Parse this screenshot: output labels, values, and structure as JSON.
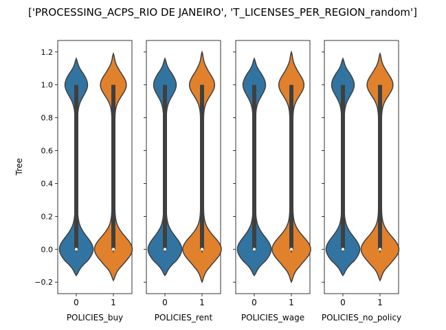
{
  "figure_title": "['PROCESSING_ACPS_RIO DE JANEIRO', 'T_LICENSES_PER_REGION_random']",
  "chart_data": {
    "type": "violin",
    "ylabel": "Tree",
    "ylim": [
      -0.27,
      1.27
    ],
    "yticks": [
      -0.2,
      0.0,
      0.2,
      0.4,
      0.6,
      0.8,
      1.0,
      1.2
    ],
    "ytick_labels": [
      "−0.2",
      "0.0",
      "0.2",
      "0.4",
      "0.6",
      "0.8",
      "1.0",
      "1.2"
    ],
    "categories": [
      "0",
      "1"
    ],
    "colors": {
      "0": "#3274a1",
      "1": "#e1812c"
    },
    "shared_y": true,
    "panels": [
      {
        "xlabel": "POLICIES_buy",
        "violins": [
          {
            "category": "0",
            "min": -0.16,
            "max": 1.16,
            "median": 0.0,
            "q1": 0.0,
            "q3": 1.0,
            "low_peak_width": 0.42,
            "high_peak_width": 0.27,
            "mid_width": 0.035
          },
          {
            "category": "1",
            "min": -0.19,
            "max": 1.19,
            "median": 0.0,
            "q1": 0.0,
            "q3": 1.0,
            "low_peak_width": 0.47,
            "high_peak_width": 0.31,
            "mid_width": 0.04
          }
        ]
      },
      {
        "xlabel": "POLICIES_rent",
        "violins": [
          {
            "category": "0",
            "min": -0.16,
            "max": 1.16,
            "median": 0.0,
            "q1": 0.0,
            "q3": 1.0,
            "low_peak_width": 0.42,
            "high_peak_width": 0.27,
            "mid_width": 0.035
          },
          {
            "category": "1",
            "min": -0.2,
            "max": 1.2,
            "median": 0.0,
            "q1": 0.0,
            "q3": 1.0,
            "low_peak_width": 0.48,
            "high_peak_width": 0.3,
            "mid_width": 0.04
          }
        ]
      },
      {
        "xlabel": "POLICIES_wage",
        "violins": [
          {
            "category": "0",
            "min": -0.16,
            "max": 1.16,
            "median": 0.0,
            "q1": 0.0,
            "q3": 1.0,
            "low_peak_width": 0.42,
            "high_peak_width": 0.27,
            "mid_width": 0.035
          },
          {
            "category": "1",
            "min": -0.2,
            "max": 1.2,
            "median": 0.0,
            "q1": 0.0,
            "q3": 1.0,
            "low_peak_width": 0.48,
            "high_peak_width": 0.3,
            "mid_width": 0.04
          }
        ]
      },
      {
        "xlabel": "POLICIES_no_policy",
        "violins": [
          {
            "category": "0",
            "min": -0.16,
            "max": 1.16,
            "median": 0.0,
            "q1": 0.0,
            "q3": 1.0,
            "low_peak_width": 0.42,
            "high_peak_width": 0.27,
            "mid_width": 0.035
          },
          {
            "category": "1",
            "min": -0.19,
            "max": 1.19,
            "median": 0.0,
            "q1": 0.0,
            "q3": 1.0,
            "low_peak_width": 0.47,
            "high_peak_width": 0.31,
            "mid_width": 0.04
          }
        ]
      }
    ]
  }
}
